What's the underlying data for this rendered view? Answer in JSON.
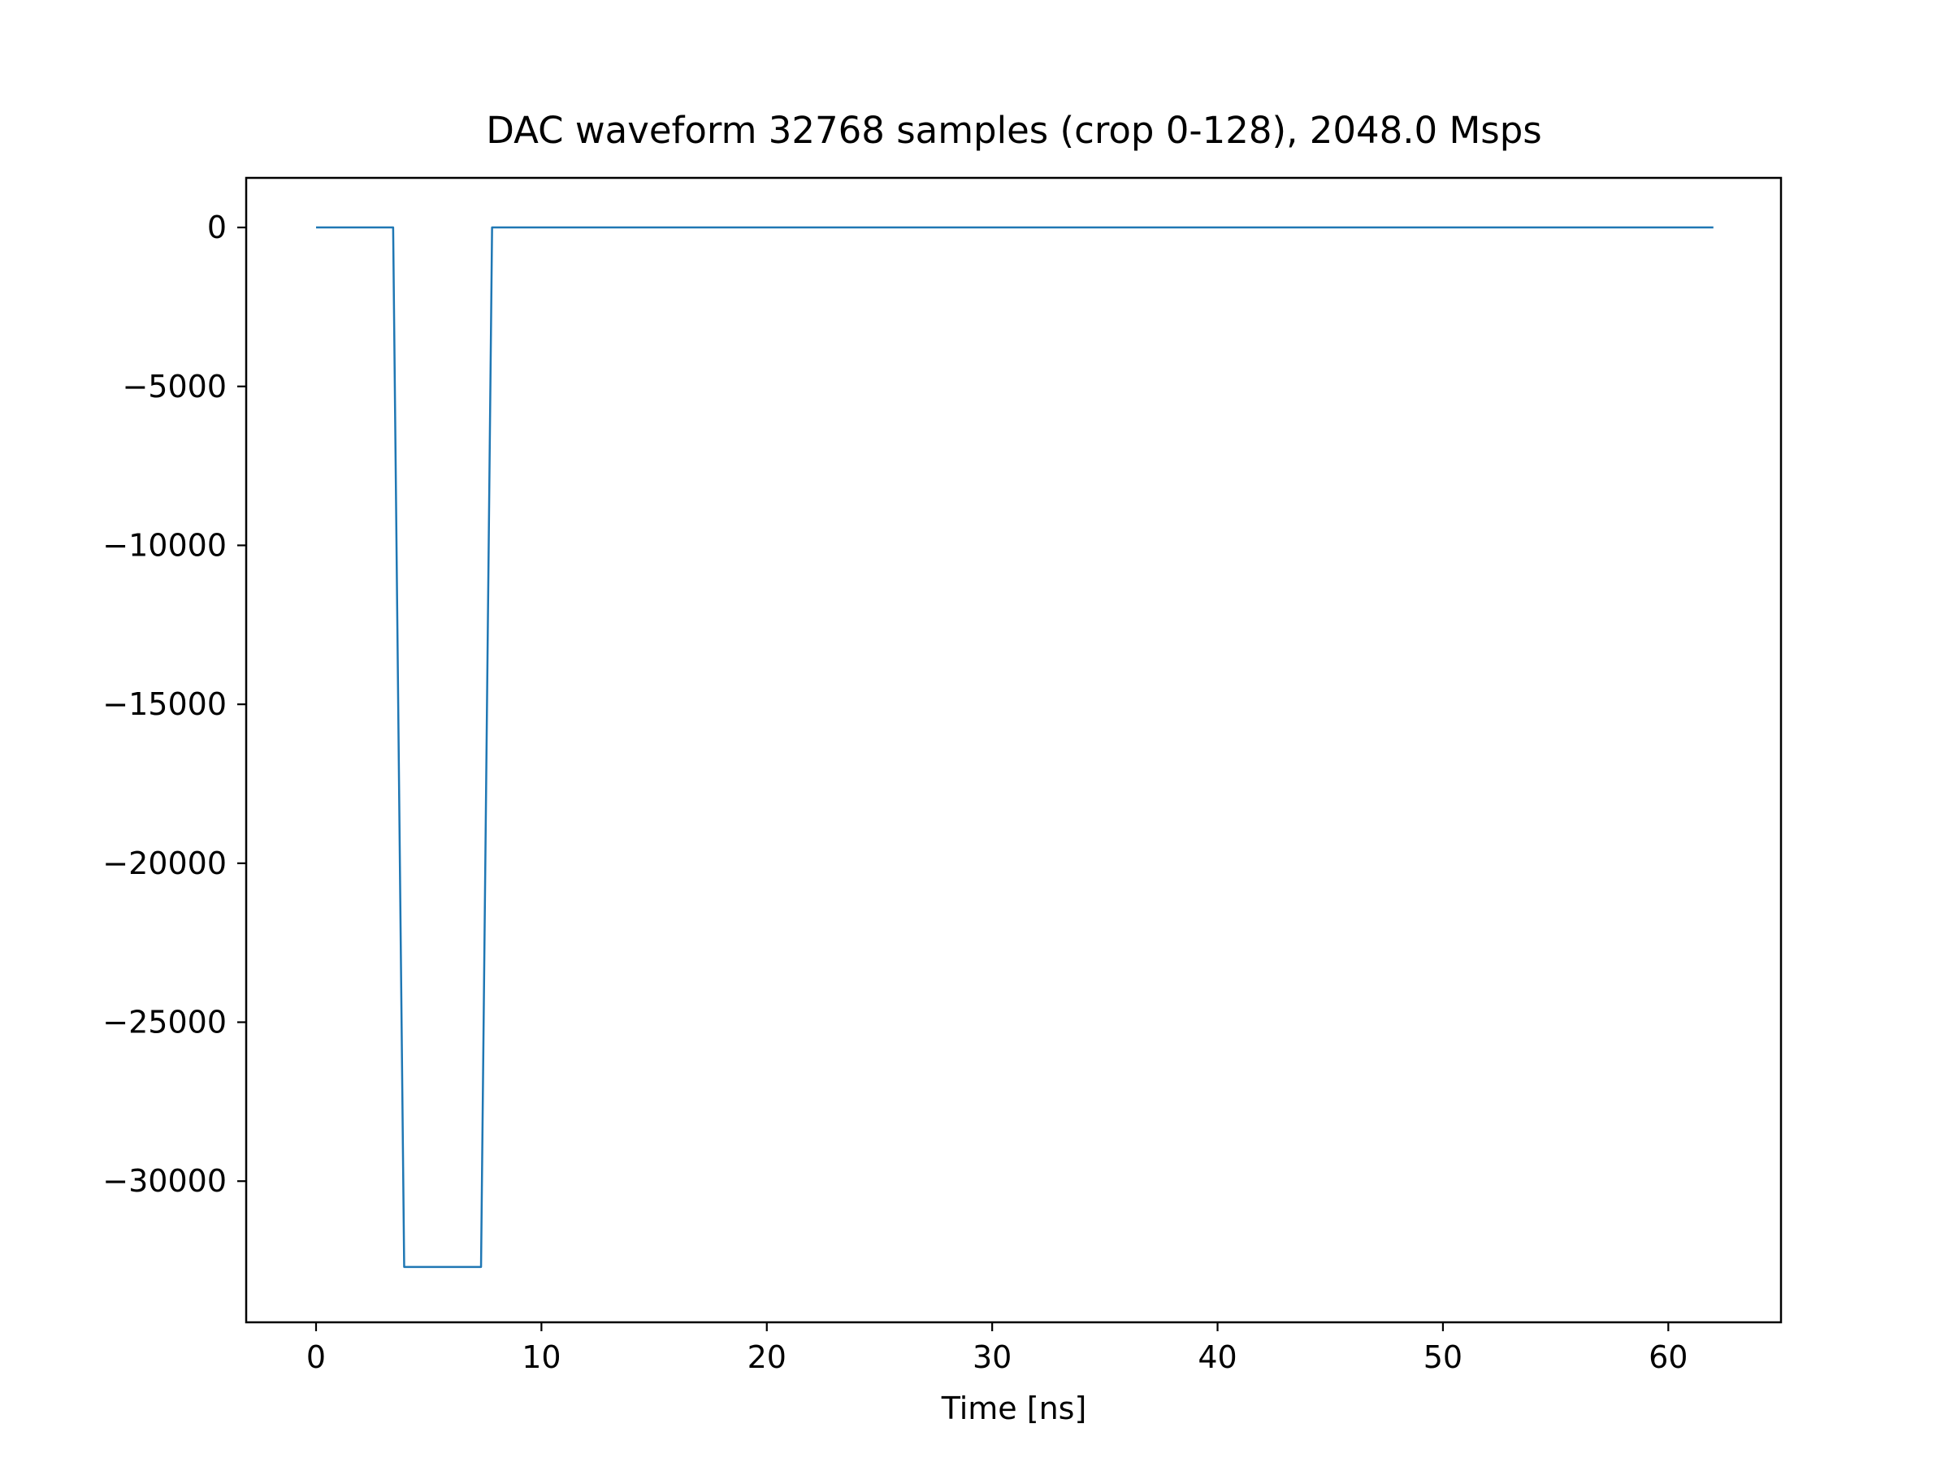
{
  "chart_data": {
    "type": "line",
    "title": "DAC waveform 32768 samples (crop 0-128), 2048.0 Msps",
    "xlabel": "Time [ns]",
    "ylabel": "",
    "xlim": [
      -3.1,
      65.0
    ],
    "ylim": [
      -34440,
      1560
    ],
    "x_ticks": [
      0,
      10,
      20,
      30,
      40,
      50,
      60
    ],
    "x_tick_labels": [
      "0",
      "10",
      "20",
      "30",
      "40",
      "50",
      "60"
    ],
    "y_ticks": [
      0,
      -5000,
      -10000,
      -15000,
      -20000,
      -25000,
      -30000
    ],
    "y_tick_labels": [
      "0",
      "−5000",
      "−10000",
      "−15000",
      "−20000",
      "−25000",
      "−30000"
    ],
    "grid": false,
    "legend": "none",
    "series": [
      {
        "color": "#1f77b4",
        "x": [
          0,
          3.42,
          3.91,
          7.32,
          7.81,
          62.0
        ],
        "y": [
          0,
          0,
          -32700,
          -32700,
          0,
          0
        ]
      }
    ]
  }
}
